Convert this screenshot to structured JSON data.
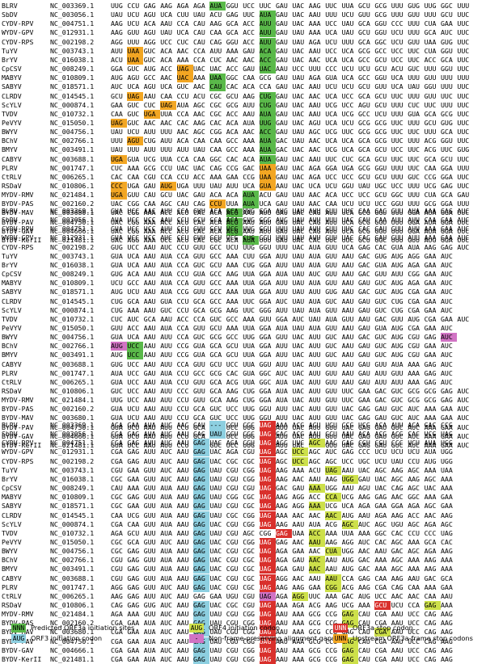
{
  "viruses": [
    {
      "name": "BLRV",
      "acc": "NC_003369.1"
    },
    {
      "name": "SbDV",
      "acc": "NC_003056.1"
    },
    {
      "name": "CYDV-RPV",
      "acc": "NC_004751.1"
    },
    {
      "name": "WYDV-GPV",
      "acc": "NC_012931.1"
    },
    {
      "name": "CYDV-RPS",
      "acc": "NC_002198.2"
    },
    {
      "name": "TuYV",
      "acc": "NC_003743.1"
    },
    {
      "name": "BrYV",
      "acc": "NC_016038.1"
    },
    {
      "name": "CpCSV",
      "acc": "NC_008249.1"
    },
    {
      "name": "MABYV",
      "acc": "NC_010809.1"
    },
    {
      "name": "SABYV",
      "acc": "NC_018571.1"
    },
    {
      "name": "CLRDV",
      "acc": "NC_014545.1"
    },
    {
      "name": "ScYLV",
      "acc": "NC_000874.1"
    },
    {
      "name": "TVDV",
      "acc": "NC_010732.1"
    },
    {
      "name": "PeVYV",
      "acc": "NC_015050.1"
    },
    {
      "name": "BWYV",
      "acc": "NC_004756.1"
    },
    {
      "name": "BChV",
      "acc": "NC_002766.1"
    },
    {
      "name": "BMYV",
      "acc": "NC_003491.1"
    },
    {
      "name": "CABYV",
      "acc": "NC_003688.1"
    },
    {
      "name": "PLRV",
      "acc": "NC_001747.1"
    },
    {
      "name": "CtRLV",
      "acc": "NC_006265.1"
    },
    {
      "name": "RSDaV",
      "acc": "NC_010806.1"
    },
    {
      "name": "MYDV-RMV",
      "acc": "NC_021484.1"
    },
    {
      "name": "BYDV-PAS",
      "acc": "NC_002160.2"
    },
    {
      "name": "BYDV-MAV",
      "acc": "NC_003680.1"
    },
    {
      "name": "BYDV-PAV",
      "acc": "NC_004750.1"
    },
    {
      "name": "BYDV-GAV",
      "acc": "NC_004666.1"
    },
    {
      "name": "BYDV-KerII",
      "acc": "NC_021481.1"
    }
  ],
  "blocks": [
    [
      "UUG CCU GAG AAG AGA AGA AUA GGU UCC UUC GAU UAC AAG UUC UUA GCU GCG UUU GUG UUG GGC UUU",
      "UAU UCU AGU UCA CUU UAU ACU GAG UUC AUA GAU UAC AAU UUU UCU GUU GCG UUU GUU UUU GCU UUC",
      "AAG UCU ACA AAU CCA CAU AAG GCA ACC AUU GAU UAC AAA UCC UAU GCA GGU CCC UUU CUA GAA UUC",
      "AAG GUU AGU UAU UCA CAU CAA GCA ACC AUU GAU UAU AAA UCA UAU GCU GGU UCU UUU GCA AUC UUC",
      "AGG UUU AGG UCC CUC CAU CAG GGU ACC AUU GAU UAU AGA UCU UUU GCA GGC UCU GUU UAA GUG UUC",
      "AUU UAA GUC ACA AAC CCA AUU AAA GAU ACA GAU UAC AAU UCC UCA GCG GCC UCC UUC CUA GGU UUC",
      "ACU UAA GUC ACA AAA CCA CUC AAC AAC ACC GAU UAC AAC UCA UCA GCC GCU UCC UUC ACC GCA UUC",
      "GGA GUC AUG ACC UAG UAC UAC ACC GAU UAC AAU UCC UUU CCC UCU UCU GCU ACU GUC UUU GGU UUC",
      "AUG AGU GCC AAC UAC AAA UAA GGC CAA GCG GAU UAU AGA GUA UCA GCC GGU UCA UUU GUU UUU UUU",
      "AUC UCA AGU UCA GUC AAC CAU CAC ACA CCA GAU UAC AAU UCU UCU GCU GUU UCA UAU GGU UUU UUC",
      "GCU UAG AAU CAA CCU ACU CGC GCU AAG CUG GAU UAC AAC UCA UCC GCA GCU UUC UUU GUU UUC UUC",
      "GAA GUC CUC UAG AUA AGC CGC GCG AUU CUG GAU UAC AAU UCG UCC AGU GCU UUU CUC UUC UUU UUC",
      "CAA GUC UGA UUA CCA AAC CGC ACC AAU AUA GAU UAC AAU UCA UCG GCC UCU UUU GUA GCA GCG UUC",
      "UAG GUC AAC AAC CAC AAG CAC ACA AUA UUG GAU UAC AGU UCA UCU GCG GCG UUC UUU GCU GUG UUC",
      "UAU UCU AUU UUU AAC AGC CGG ACA AAC ACC GAU UAU AGC UCG UUC GCG GCG UUC UUC UUU GCA UUC",
      "UUU AGU CUG AUU ACA CAA CAA GCC AAA AUA GAC UAU AAC UCA UCA GCA GCG UUC UUU ACG GGU UUC",
      "UAU UUU AUU UUU AUU UAU CAA GCC AAA AUA GAC UAC AAC UCG UCA GCA GCU UCC UUC ACG UUC GUG",
      "UGA GUA UCG UUA CCA CAA GGC CAC ACA AUA GAU UAC AAU UUC CUC GCA GCU UUC UUC GCA GCU UUC",
      "CUC AAA GCG CCU UAC UAC CAG CCG GAC UAA GAU UAC AGA GGA UGA GCG GGU UUU UUC CAA GGA UUU",
      "CAC CAA CGU CCA CCU ACC AAA GAA CCG UAA GAU UAC AGA UCC UCC GCU GCU UUU GUC CCG GGA UUC",
      "CCC UGA GAU AUG UGA UUU UAU AUU UCA GUA AAU UAC UCA UCU GGU UAU UGC UCC UUU UCG GAG UUC",
      "UGA GUU CAU GCU UAC GAU ACA ACA AUA ACU GAU UAU AAC ACA UCC UCC GCU GGC UUU CUA GCA GAU",
      "UAC CGG CAA AGC CAU CAG CCU UUA AUA UCA GAU UAU AAC CAA UCU UCU UCC GGU UUU GCG GGA UUU",
      "UAC CGG AAA ACC ACU CAC ACA ACG AAU AUU GAU UAC CAG AUU UCA GCG GGU UUU GGA AUA GGA UUC",
      "UAC CGG AAA ACC ACU CAC ACA ACG AAU AUU GAU UAC CAG AUU UCA GCG GGU UUU GGA AUA GGA UUC",
      "UAC CGG AAA ACC ACU CAC ACA ACG AAU AUU GAU UAC CAG AUU UCA GCG GGU UUU GGA AUA GGA UUC",
      "UAC AGG AAA UCC ACU CAC CGC ACA AUA UUU GAU UAC CAC UUC UUC GCU GGC UUU GUU AUG GGA UUC"
    ],
    [
      "GUA UCC AAC AUU CCA GUU ACA GCA UUG GGA AUC UAU AUU GUU UUC CAA GAC GUU AUA AAA GAG AUC",
      "AUA UCC UCC AAU CCU GCU GCA ACA GUG GGG AUC UAU AUU UUU UAC CAU CAA AUU AUU CAA GAA AUC",
      "GUA UCC UCC AUU CCU GUU GCU UCG UUG GGU UUU UAU AUU GUU UUC CAC GAU GUU AUU AAA GAA AUC",
      "GUA UCC UCC AUC CCU GUU GCU UCG CUG GGU UUU UAU AUU GUU UAC CAC GAU GUU AUU AAA GAA AUC",
      "GUG UCC AAU AUC CCU GUU GCC UCU UUG GGU UUU UAC AUA GUU UCA GAG CAC GUA AUA AAG GAG AUC",
      "GUA UCA AAU AUA CCA GUU GCC AAA CUU GGA AUU UAU AUA GUU AAU GAC GUG AUG AGG GAA AUC",
      "GUA UCA AAU AUA CCA GUC GCU AAA CUG GGA AUU UAU AUA GUU AAU GAC GUA AUG AGA GAA AUC",
      "GUG ACA AAU AUA CCU GUA GCC AAG UUA GGA AUA UAU AUC GUU AAU GAC GUU AUU CGG GAA AUC",
      "UCU GCC AAU AUA CCA GUU GCC AAA UUA GGA AUU UAU AUA GUU AAU GAU GUC AUG AGA GAA AUC",
      "AUG UCU AAU AUA CCG GUU GCC AAA UUA GGA AUU UAU AUU GUG AAU GAC GUC AUG CGA GAA AUC",
      "CUG GCA AAU GUA CCU GCA GCC AAA UUC GGA AUC UAU AUA GUC AAU GAU GUC CUG CGA GAA AUC",
      "CUG AAA AAU GUC CCU GCA GCG AAG UUC GGG AUU UAU AUA GUU AAU GAU GUC CUG CGA GAA AUC",
      "CUC AUC GCA AAU ACC CCA GUC GCC AAA GUU GGA AUC UAU AUA GUU AAU GAC GUU AUG CGA GAA AUC",
      "GUU ACC AAU AUA CCA GUU GCU AAA UUA GGA AUA UAU AUA GUU AAU GAU GUA AUG CGA GAA AUC",
      "GUA UCA AAU AUU CCA GUC GCG GCC UUG GGA GUU UAC AUU GUC AAU GAC GUC AUG CGU GAG AUC",
      "AUG UCC AAU AUU CCG GUA GCA GCU UUA GGA AUU UAC AUU GUC AAU GAU GUC AUG CGU GAA AUC",
      "AUG UCC AAU AUU CCG GUA GCA GCU UUA GGA AUU UAC AUU GUC AAU GAU GUC AUG CGU GAA AUC",
      "GUG UCC AAU AUU CCA GUU GCU UCC UUA GGU AUU UAC AUU GUU AAU GAU GUU AUA AAA GAG AUC",
      "AUA UCC GAU AUA CCU GCC GCG CAC GUA GGC AUC UAC AUU GUU AAU GAU AUU GUU AAA GAG AUC",
      "GUA UCC AAU AUA CCU GUU GCA ACG UUA GGC AUA UAC AUU GUU AAU GAU AUU AUU AAA GAG AUC",
      "GUC UCC AAU AUU CCC GUU GCA AAG CUG GGA AUA UAC AUU GUU UUC GAA GAC GUC GCG GCG GAG AUC",
      "UUG UCC AAU AUU CCU GUU GCA AAG CUG GGA AUA UAC AUU GUU UUC GAA GAC GUC GCG GCG GAG AUC",
      "GUA UCU AAU AUU CCU GCA GUC UCC UUG GGU AUU UAC AUU GUU UAC GAG GAU GUC AUC AAA GAA AUC",
      "GUA UCU AAU AUU CCU GCA GUC UCC UUG GGU AUU UAC AUU GUU UAC GAG GAU GUC AUC AAA GAA AUC",
      "GUA UCU AAU AUU CCU GCA GUC UCC UUG GGU AUU UAC AUU GUU UAC GAG GAU GUC AUC AAA GAA AUC",
      "GUA UCU AAU AUU CCU GCA GUC UCC UUG GGU AUU UAC AUU GUU UAC GAG GAU GUC AUC AAA GAA AUC",
      "GUA UCC AAU AUU CCU GCA GUC UCC UUG GGU AUU UAC AUU GUU UAC GAG GAU GUC AUC AAA GAA AUC"
    ],
    [
      "AGA GAA AUA AUC AAC GAU --- GGU CGC UAG AAA ACG AGU UGU CCG UCG ACA AUU ACA GAC CCG",
      "CGA GAG AUA AUC AAU GAG UAU GGU CGC UAG GAC ACG AAU GCU AAU ACA ACG ACG CAC UCG UAG",
      "CGA GAG AUU AUC AAU GAG UAC AGA CGU UAG AGC UUC AGC AAC GAG CGU CGU CCC UCU AUA UGG",
      "CGA GAG AUU AUC AAU GAG UAC AGA CGU UAG AGC UCC AGC AUC GAG CCC UCU UCU UCU AUA UGG",
      "CGA GAG AUU AUC AAU GAG UAC CGC CGC UAG AGC UCC AGC AGC UCC UGC UCU UAU CCU AUG UGG",
      "CGU GAA GUU AUC AAU GAG UAU CGU CGG UAG AAG AAA ACU UAG AAU UAC AGC AAG AGC AAA UAA",
      "CGC GAA GUU AUC AAU GAG UAU CGU CGG UAG AAG AAC AAU AAG UGG GAU UAC AGC AAG AGC AAA",
      "CAU AAA GUU AUA AAU GAG UAU CGU CGU UAG GAC GAU AAA UGG AAU AGU UAC CAG AGC UAC AAA",
      "CGC GAG GUU AUA AAU GAG UAU CGG CGC UAG AAG AGG ACC CCA UCG AAG GAG AAC GGC AAA GAA",
      "CGC GAA GUU AUA AAU GAG UAU CGU CGC UAG AAG AGG AAA UCG UCA AGA GAA GGA AGA AGC GAA",
      "CAA UCG GUU AUA AAU GAG UAU CGC CGG UAG AAA AAC AAC AAC AUG AAU AGA AAG ACC AAC AAG",
      "CGA CAA GUU AUA AAU GAG UAC CGU CGG UAG AAG AAU AUA ACG AGC AUC AGC UGU AGC AGA AGC",
      "AGA GCU AUU AUA AAU GAG UAU CGU AGC CGG GAG UAA ACC AAA UUA AAA GGC CAC CCU CCC UAG",
      "CGC GCA GUU AUC AAU GAG UAC CGU CGG UAG GAG AAC AAU AAG AGG AUC CAC AGC AAA GCA CAC",
      "CGC GAG GUU AUA AAU GAG UAC CGU CGC UAG AGA GAA AAC CUA UGG AAC AAU GAC AGC AGA AAG",
      "CGU GAG GUU AUA AAU GAG UAC CGU CGC UAG AGA GAU AAC AAU AUG GAC AAA AGC AAA AAG AAA",
      "CGU GAG GUU AUA AAU GAG UAC CGU CGC UAG AGA GAU AAC AAU AUG GAC AAA AGC AAA AAG AAA",
      "CGU GAG GUU AUA AAU GAG UAC CGU CGC UAG AGG AAC AAU AAU CCA GAG CAA AAG AAU GAC GCA",
      "AGG GAG GUU AUC AAU GAG UAC CGU CGC UAG AAG AAG GAA CGG ACG AAG CGA CAG CAA AAA GAA",
      "AAG GAG AUU AUC AAU GAG GAA UGU CGU UAG AGA AGG UUC AAA GAC AUG UCC AAC AAC CAA AAU",
      "CAG GAG GUG AUC AAU GAG UAC CGC CGU UAG AAA AGA ACG AAG UCG AAA GCU UCU CCA GAG AAA",
      "AGA AAA GUU AUC AAU GAG UAU CGU CGG UAG AAU AAA GCG CCG GAG CAU CGA AAU UCC CAG AAG",
      "CGA GAA AUA AUC AAU GAG UAU CGU CGG UAG AAU AAA GCG CCG GAG CAU CGA AAU UCC CAG AAG",
      "CGA GAA AUA AUC AAU GAG UAU CGU CGG UAG AAU AAA GCG CCG GAG CAU CGA AAU UCC CAG AAG",
      "CGA GAA AUA AUC AAU GAG UAU CGU CGG UAG AAU AAA GCG CCG GAG CAU CGA AAU UCC CAG AAG",
      "CGA GAA AUA AUC AAU GAG UAU CGU CGG UAG AAU AAA GCG CCG GAG CAU CGA AAU UCC CAG AAG",
      "CGA GAA AUA AUC AAU GAG UAU CGU CGG UAG AAU AAA GCG CCG GAG CAU CGA AAU UCC CAG AAG"
    ]
  ],
  "highlights": [
    [
      {
        "r": 0,
        "c": 6,
        "t": "green"
      },
      {
        "r": 1,
        "c": 9,
        "t": "green"
      },
      {
        "r": 2,
        "c": 9,
        "t": "green"
      },
      {
        "r": 3,
        "c": 9,
        "t": "green"
      },
      {
        "r": 4,
        "c": 9,
        "t": "green"
      },
      {
        "r": 5,
        "c": 1,
        "t": "orange"
      },
      {
        "r": 5,
        "c": 9,
        "t": "green"
      },
      {
        "r": 6,
        "c": 1,
        "t": "orange"
      },
      {
        "r": 6,
        "c": 9,
        "t": "green"
      },
      {
        "r": 7,
        "c": 4,
        "t": "orange"
      },
      {
        "r": 7,
        "c": 9,
        "t": "green"
      },
      {
        "r": 8,
        "c": 4,
        "t": "orange"
      },
      {
        "r": 8,
        "c": 6,
        "t": "green"
      },
      {
        "r": 9,
        "c": 6,
        "t": "green"
      },
      {
        "r": 10,
        "c": 1,
        "t": "orange"
      },
      {
        "r": 10,
        "c": 9,
        "t": "green"
      },
      {
        "r": 11,
        "c": 3,
        "t": "orange"
      },
      {
        "r": 11,
        "c": 9,
        "t": "green"
      },
      {
        "r": 12,
        "c": 2,
        "t": "orange"
      },
      {
        "r": 12,
        "c": 9,
        "t": "green"
      },
      {
        "r": 13,
        "c": 0,
        "t": "orange"
      },
      {
        "r": 13,
        "c": 9,
        "t": "green"
      },
      {
        "r": 14,
        "c": 9,
        "t": "green"
      },
      {
        "r": 15,
        "c": 1,
        "t": "orange"
      },
      {
        "r": 15,
        "c": 9,
        "t": "green"
      },
      {
        "r": 15,
        "c": 22,
        "t": "green"
      },
      {
        "r": 16,
        "c": 9,
        "t": "green"
      },
      {
        "r": 17,
        "c": 0,
        "t": "orange"
      },
      {
        "r": 17,
        "c": 9,
        "t": "green"
      },
      {
        "r": 18,
        "c": 9,
        "t": "orange"
      },
      {
        "r": 19,
        "c": 9,
        "t": "orange"
      },
      {
        "r": 20,
        "c": 0,
        "t": "orange"
      },
      {
        "r": 20,
        "c": 3,
        "t": "orange"
      },
      {
        "r": 20,
        "c": 9,
        "t": "orange"
      },
      {
        "r": 21,
        "c": 0,
        "t": "orange"
      },
      {
        "r": 21,
        "c": 8,
        "t": "green"
      },
      {
        "r": 22,
        "c": 6,
        "t": "orange"
      },
      {
        "r": 22,
        "c": 8,
        "t": "green"
      },
      {
        "r": 23,
        "c": 7,
        "t": "green"
      },
      {
        "r": 24,
        "c": 7,
        "t": "green"
      },
      {
        "r": 25,
        "c": 7,
        "t": "green"
      },
      {
        "r": 26,
        "c": 8,
        "t": "green"
      }
    ],
    [
      {
        "r": 14,
        "c": 20,
        "t": "pink"
      },
      {
        "r": 15,
        "c": 0,
        "t": "pink"
      },
      {
        "r": 15,
        "c": 1,
        "t": "green"
      },
      {
        "r": 16,
        "c": 1,
        "t": "green"
      }
    ],
    [
      {
        "r": 0,
        "c": 6,
        "t": "blue"
      },
      {
        "r": 0,
        "c": 9,
        "t": "red"
      },
      {
        "r": 1,
        "c": 6,
        "t": "blue"
      },
      {
        "r": 1,
        "c": 9,
        "t": "red"
      },
      {
        "r": 2,
        "c": 5,
        "t": "blue"
      },
      {
        "r": 2,
        "c": 9,
        "t": "red"
      },
      {
        "r": 2,
        "c": 12,
        "t": "yellow"
      },
      {
        "r": 3,
        "c": 5,
        "t": "blue"
      },
      {
        "r": 3,
        "c": 9,
        "t": "red"
      },
      {
        "r": 3,
        "c": 11,
        "t": "yellow"
      },
      {
        "r": 4,
        "c": 5,
        "t": "blue"
      },
      {
        "r": 4,
        "c": 9,
        "t": "red"
      },
      {
        "r": 4,
        "c": 11,
        "t": "yellow"
      },
      {
        "r": 5,
        "c": 5,
        "t": "blue"
      },
      {
        "r": 5,
        "c": 9,
        "t": "red"
      },
      {
        "r": 5,
        "c": 13,
        "t": "yellow"
      },
      {
        "r": 6,
        "c": 5,
        "t": "blue"
      },
      {
        "r": 6,
        "c": 9,
        "t": "red"
      },
      {
        "r": 6,
        "c": 14,
        "t": "yellow"
      },
      {
        "r": 7,
        "c": 5,
        "t": "blue"
      },
      {
        "r": 7,
        "c": 9,
        "t": "red"
      },
      {
        "r": 7,
        "c": 12,
        "t": "yellow"
      },
      {
        "r": 8,
        "c": 5,
        "t": "blue"
      },
      {
        "r": 8,
        "c": 9,
        "t": "red"
      },
      {
        "r": 8,
        "c": 13,
        "t": "yellow"
      },
      {
        "r": 9,
        "c": 5,
        "t": "blue"
      },
      {
        "r": 9,
        "c": 9,
        "t": "red"
      },
      {
        "r": 9,
        "c": 12,
        "t": "yellow"
      },
      {
        "r": 10,
        "c": 5,
        "t": "blue"
      },
      {
        "r": 10,
        "c": 9,
        "t": "red"
      },
      {
        "r": 10,
        "c": 13,
        "t": "yellow"
      },
      {
        "r": 11,
        "c": 5,
        "t": "blue"
      },
      {
        "r": 11,
        "c": 9,
        "t": "red"
      },
      {
        "r": 11,
        "c": 14,
        "t": "yellow"
      },
      {
        "r": 12,
        "c": 5,
        "t": "blue"
      },
      {
        "r": 12,
        "c": 10,
        "t": "red"
      },
      {
        "r": 12,
        "c": 12,
        "t": "yellow"
      },
      {
        "r": 13,
        "c": 5,
        "t": "blue"
      },
      {
        "r": 13,
        "c": 9,
        "t": "red"
      },
      {
        "r": 13,
        "c": 12,
        "t": "yellow"
      },
      {
        "r": 14,
        "c": 5,
        "t": "blue"
      },
      {
        "r": 14,
        "c": 9,
        "t": "red"
      },
      {
        "r": 14,
        "c": 13,
        "t": "yellow"
      },
      {
        "r": 15,
        "c": 5,
        "t": "blue"
      },
      {
        "r": 15,
        "c": 9,
        "t": "red"
      },
      {
        "r": 15,
        "c": 12,
        "t": "yellow"
      },
      {
        "r": 16,
        "c": 5,
        "t": "blue"
      },
      {
        "r": 16,
        "c": 9,
        "t": "red"
      },
      {
        "r": 16,
        "c": 12,
        "t": "yellow"
      },
      {
        "r": 17,
        "c": 5,
        "t": "blue"
      },
      {
        "r": 17,
        "c": 9,
        "t": "red"
      },
      {
        "r": 17,
        "c": 13,
        "t": "yellow"
      },
      {
        "r": 18,
        "c": 5,
        "t": "blue"
      },
      {
        "r": 18,
        "c": 9,
        "t": "red"
      },
      {
        "r": 18,
        "c": 13,
        "t": "yellow"
      },
      {
        "r": 19,
        "c": 9,
        "t": "pink"
      },
      {
        "r": 19,
        "c": 11,
        "t": "yellow"
      },
      {
        "r": 20,
        "c": 5,
        "t": "blue"
      },
      {
        "r": 20,
        "c": 9,
        "t": "red"
      },
      {
        "r": 20,
        "c": 16,
        "t": "red"
      },
      {
        "r": 20,
        "c": 19,
        "t": "yellow"
      },
      {
        "r": 21,
        "c": 5,
        "t": "blue"
      },
      {
        "r": 21,
        "c": 9,
        "t": "red"
      },
      {
        "r": 21,
        "c": 14,
        "t": "yellow"
      },
      {
        "r": 22,
        "c": 5,
        "t": "blue"
      },
      {
        "r": 22,
        "c": 9,
        "t": "red"
      },
      {
        "r": 22,
        "c": 14,
        "t": "yellow"
      },
      {
        "r": 23,
        "c": 5,
        "t": "blue"
      },
      {
        "r": 23,
        "c": 9,
        "t": "red"
      },
      {
        "r": 23,
        "c": 16,
        "t": "yellow"
      },
      {
        "r": 24,
        "c": 5,
        "t": "blue"
      },
      {
        "r": 24,
        "c": 9,
        "t": "red"
      },
      {
        "r": 24,
        "c": 14,
        "t": "yellow"
      },
      {
        "r": 25,
        "c": 5,
        "t": "blue"
      },
      {
        "r": 25,
        "c": 9,
        "t": "red"
      },
      {
        "r": 25,
        "c": 14,
        "t": "yellow"
      },
      {
        "r": 26,
        "c": 5,
        "t": "blue"
      },
      {
        "r": 26,
        "c": 9,
        "t": "red"
      },
      {
        "r": 26,
        "c": 14,
        "t": "yellow"
      }
    ]
  ],
  "legend": [
    {
      "swatch": "NNN",
      "label": "Predicted ORF3a initiation sites",
      "type": "green"
    },
    {
      "swatch": "AUG",
      "label": "ORF4 initiation codon",
      "type": "yellow"
    },
    {
      "swatch": "UNN",
      "label": "ORF3a stop codon",
      "type": "red"
    },
    {
      "swatch": "AUG",
      "label": "ORF3 initiation codon",
      "type": "blue"
    },
    {
      "swatch": "-",
      "label": "Non-frame-preserving alignment gaps",
      "type": "pink"
    },
    {
      "swatch": "UNN",
      "label": "Upstream ORF3a-frame stop codons",
      "type": "orange"
    }
  ],
  "colors": {
    "green": "#5ab94a",
    "orange": "#f2a623",
    "blue": "#8dcfe0",
    "red": "#d9302c",
    "yellow": "#cde04a",
    "pink": "#d173c4"
  }
}
